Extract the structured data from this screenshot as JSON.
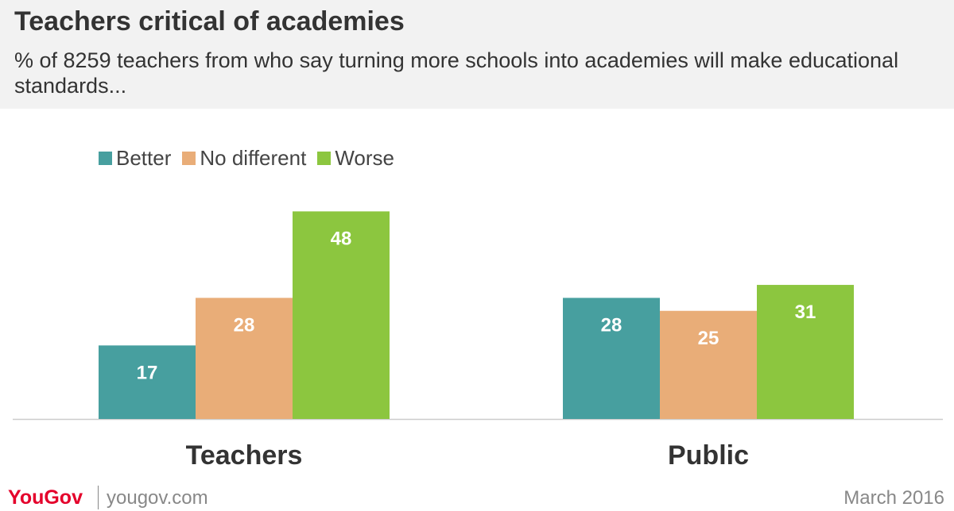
{
  "header": {
    "title": "Teachers critical of academies",
    "subtitle": "% of 8259 teachers from who say turning more schools into academies will make educational standards..."
  },
  "footer": {
    "brand": "YouGov",
    "site": "yougov.com",
    "date": "March 2016"
  },
  "chart_data": {
    "type": "bar",
    "categories": [
      "Teachers",
      "Public"
    ],
    "series": [
      {
        "name": "Better",
        "values": [
          17,
          28
        ],
        "color": "#479f9f"
      },
      {
        "name": "No different",
        "values": [
          28,
          25
        ],
        "color": "#e9ad78"
      },
      {
        "name": "Worse",
        "values": [
          48,
          31
        ],
        "color": "#8cc63f"
      }
    ],
    "title": "Teachers critical of academies",
    "xlabel": "",
    "ylabel": "",
    "ylim": [
      0,
      60
    ],
    "grid": false,
    "legend": "top-left",
    "data_labels": true
  }
}
